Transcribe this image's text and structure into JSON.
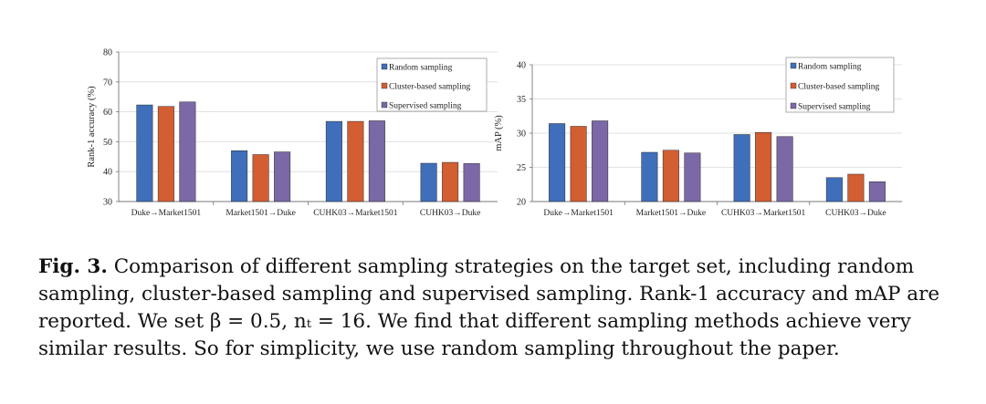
{
  "chart_data": [
    {
      "type": "bar",
      "ylabel": "Rank-1 accuracy (%)",
      "xlabel": "",
      "ylim": [
        30,
        80
      ],
      "yticks": [
        30,
        40,
        50,
        60,
        70,
        80
      ],
      "categories": [
        "Duke→Market1501",
        "Market1501→Duke",
        "CUHK03→Market1501",
        "CUHK03→Duke"
      ],
      "series": [
        {
          "name": "Random sampling",
          "color": "#3f6fba",
          "values": [
            62.3,
            47.0,
            56.8,
            42.8
          ]
        },
        {
          "name": "Cluster-based sampling",
          "color": "#d25e32",
          "values": [
            61.8,
            45.7,
            56.8,
            43.1
          ]
        },
        {
          "name": "Supervised sampling",
          "color": "#7b68a6",
          "values": [
            63.3,
            46.6,
            57.0,
            42.7
          ]
        }
      ],
      "grid": true,
      "legend": "top-right"
    },
    {
      "type": "bar",
      "ylabel": "mAP (%)",
      "xlabel": "",
      "ylim": [
        20,
        40
      ],
      "yticks": [
        20,
        25,
        30,
        35,
        40
      ],
      "categories": [
        "Duke→Market1501",
        "Market1501→Duke",
        "CUHK03→Market1501",
        "CUHK03→Duke"
      ],
      "series": [
        {
          "name": "Random sampling",
          "color": "#3f6fba",
          "values": [
            31.4,
            27.2,
            29.8,
            23.5
          ]
        },
        {
          "name": "Cluster-based sampling",
          "color": "#d25e32",
          "values": [
            31.0,
            27.5,
            30.1,
            24.0
          ]
        },
        {
          "name": "Supervised sampling",
          "color": "#7b68a6",
          "values": [
            31.8,
            27.1,
            29.5,
            22.9
          ]
        }
      ],
      "grid": true,
      "legend": "top-right"
    }
  ],
  "caption": {
    "label": "Fig. 3.",
    "text": " Comparison of different sampling strategies on the target set, including random sampling, cluster-based sampling and supervised sampling. Rank-1 accuracy and mAP are reported. We set β = 0.5, nₜ = 16. We find that different sampling methods achieve very similar results. So for simplicity, we use random sampling throughout the paper."
  }
}
